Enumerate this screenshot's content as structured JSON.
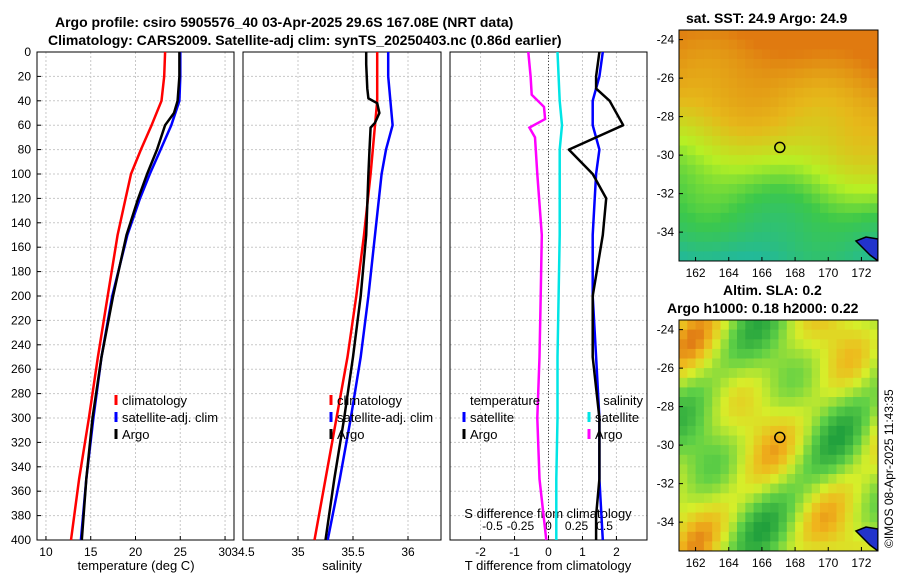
{
  "header": {
    "title_line1": "Argo profile: csiro 5905576_40 03-Apr-2025 29.6S 167.08E (NRT data)",
    "title_line2": "Climatology: CARS2009. Satellite-adj clim: synTS_20250403.nc (0.86d earlier)"
  },
  "map_titles": {
    "sst": "sat. SST: 24.9 Argo: 24.9",
    "sla_line1": "Altim. SLA: 0.2",
    "sla_line2": "Argo h1000: 0.18 h2000: 0.22"
  },
  "side_label": "©IMOS 08-Apr-2025 11:43:35",
  "colors": {
    "climatology": "#ff0000",
    "satellite": "#0000ff",
    "argo": "#000000",
    "sal_satellite": "#00e5e5",
    "sal_argo": "#ff00ff"
  },
  "chart_data": [
    {
      "type": "line",
      "panel": "temperature",
      "xlabel": "temperature (deg C)",
      "ylabel": "",
      "xlim": [
        9,
        31
      ],
      "ylim": [
        400,
        0
      ],
      "xticks": [
        10,
        15,
        20,
        25,
        30
      ],
      "yticks": [
        0,
        20,
        40,
        60,
        80,
        100,
        120,
        140,
        160,
        180,
        200,
        220,
        240,
        260,
        280,
        300,
        320,
        340,
        360,
        380,
        400
      ],
      "legend": [
        "climatology",
        "satellite-adj. clim",
        "Argo"
      ],
      "series": [
        {
          "name": "climatology",
          "depth": [
            0,
            20,
            40,
            60,
            80,
            100,
            120,
            150,
            200,
            250,
            300,
            350,
            400
          ],
          "values": [
            23.3,
            23.2,
            22.9,
            21.8,
            20.6,
            19.5,
            18.9,
            18.0,
            16.9,
            15.8,
            14.8,
            13.7,
            12.8
          ]
        },
        {
          "name": "satellite-adj. clim",
          "depth": [
            0,
            20,
            40,
            60,
            80,
            100,
            120,
            150,
            200,
            250,
            300,
            350,
            400
          ],
          "values": [
            25.0,
            25.0,
            24.9,
            24.0,
            22.8,
            21.6,
            20.5,
            19.1,
            17.4,
            16.2,
            15.3,
            14.5,
            13.9
          ]
        },
        {
          "name": "Argo",
          "depth": [
            0,
            20,
            40,
            50,
            60,
            80,
            100,
            120,
            150,
            200,
            250,
            300,
            350,
            400
          ],
          "values": [
            24.9,
            24.9,
            24.7,
            24.3,
            23.3,
            22.4,
            21.3,
            20.3,
            19.0,
            17.5,
            16.2,
            15.2,
            14.5,
            14.0
          ]
        }
      ]
    },
    {
      "type": "line",
      "panel": "salinity",
      "xlabel": "salinity",
      "ylabel": "",
      "xlim": [
        34.5,
        36.3
      ],
      "ylim": [
        400,
        0
      ],
      "xticks": [
        34.5,
        35,
        35.5,
        36
      ],
      "xtick_labels": [
        "34.5",
        "35",
        "35.5",
        "36"
      ],
      "legend": [
        "climatology",
        "satellite-adj. clim",
        "Argo"
      ],
      "series": [
        {
          "name": "climatology",
          "depth": [
            0,
            20,
            40,
            60,
            80,
            100,
            150,
            200,
            250,
            300,
            350,
            400
          ],
          "values": [
            35.72,
            35.72,
            35.72,
            35.7,
            35.68,
            35.66,
            35.6,
            35.53,
            35.45,
            35.35,
            35.25,
            35.15
          ]
        },
        {
          "name": "satellite-adj. clim",
          "depth": [
            0,
            20,
            40,
            60,
            80,
            100,
            150,
            200,
            250,
            300,
            350,
            400
          ],
          "values": [
            35.82,
            35.82,
            35.84,
            35.86,
            35.8,
            35.76,
            35.7,
            35.64,
            35.57,
            35.48,
            35.38,
            35.27
          ]
        },
        {
          "name": "Argo",
          "depth": [
            0,
            10,
            30,
            38,
            42,
            50,
            58,
            62,
            80,
            100,
            150,
            200,
            250,
            300,
            350,
            400
          ],
          "values": [
            35.62,
            35.62,
            35.63,
            35.64,
            35.72,
            35.74,
            35.7,
            35.66,
            35.65,
            35.64,
            35.62,
            35.57,
            35.5,
            35.42,
            35.33,
            35.25
          ]
        }
      ]
    },
    {
      "type": "line",
      "panel": "difference",
      "xlabel": "T difference from climatology",
      "xlabel2": "S difference from climatology",
      "xlim": [
        -2.9,
        2.9
      ],
      "ylim": [
        400,
        0
      ],
      "xticks": [
        -2,
        -1,
        0,
        1,
        2
      ],
      "xticks2": [
        -0.5,
        -0.25,
        0,
        0.25,
        0.5
      ],
      "xtick2_labels": [
        "-0.5",
        "-0.25",
        "0",
        "0.25",
        "0.5"
      ],
      "legend_temperature": {
        "heading": "temperature",
        "entries": [
          "satellite",
          "Argo"
        ]
      },
      "legend_salinity": {
        "heading": "salinity",
        "entries": [
          "satellite",
          "Argo"
        ]
      },
      "series": [
        {
          "name": "T satellite",
          "depth": [
            0,
            20,
            40,
            60,
            80,
            100,
            150,
            200,
            250,
            300,
            350,
            400
          ],
          "values": [
            1.6,
            1.5,
            1.3,
            1.3,
            1.5,
            1.4,
            1.3,
            1.3,
            1.4,
            1.5,
            1.5,
            1.6
          ]
        },
        {
          "name": "T Argo",
          "depth": [
            0,
            20,
            30,
            40,
            60,
            70,
            80,
            100,
            120,
            150,
            200,
            250,
            300,
            350,
            380,
            400
          ],
          "values": [
            1.5,
            1.4,
            1.4,
            1.8,
            2.2,
            1.4,
            0.6,
            1.3,
            1.7,
            1.6,
            1.3,
            1.3,
            1.5,
            1.5,
            1.4,
            1.4
          ]
        },
        {
          "name": "S satellite",
          "depth": [
            0,
            40,
            60,
            80,
            100,
            150,
            200,
            250,
            300,
            350,
            400
          ],
          "values": [
            0.08,
            0.1,
            0.12,
            0.1,
            0.1,
            0.1,
            0.09,
            0.08,
            0.08,
            0.07,
            0.07
          ]
        },
        {
          "name": "S Argo",
          "depth": [
            0,
            20,
            35,
            45,
            55,
            62,
            70,
            100,
            150,
            200,
            250,
            300,
            350,
            400
          ],
          "values": [
            -0.18,
            -0.16,
            -0.15,
            -0.04,
            -0.03,
            -0.17,
            -0.12,
            -0.1,
            -0.06,
            -0.07,
            -0.08,
            -0.1,
            -0.08,
            -0.02
          ]
        }
      ]
    },
    {
      "type": "heatmap",
      "panel": "sst-map",
      "title": "sat. SST: 24.9 Argo: 24.9",
      "xlim": [
        161,
        173
      ],
      "ylim": [
        -35.5,
        -23.5
      ],
      "xticks": [
        162,
        164,
        166,
        168,
        170,
        172
      ],
      "yticks": [
        -24,
        -26,
        -28,
        -30,
        -32,
        -34
      ],
      "argo_position": {
        "lon": 167.08,
        "lat": -29.6
      }
    },
    {
      "type": "heatmap",
      "panel": "sla-map",
      "title": "Altim. SLA: 0.2",
      "subtitle": "Argo h1000: 0.18 h2000: 0.22",
      "xlim": [
        161,
        173
      ],
      "ylim": [
        -35.5,
        -23.5
      ],
      "xticks": [
        162,
        164,
        166,
        168,
        170,
        172
      ],
      "yticks": [
        -24,
        -26,
        -28,
        -30,
        -32,
        -34
      ],
      "argo_position": {
        "lon": 167.08,
        "lat": -29.6
      }
    }
  ]
}
